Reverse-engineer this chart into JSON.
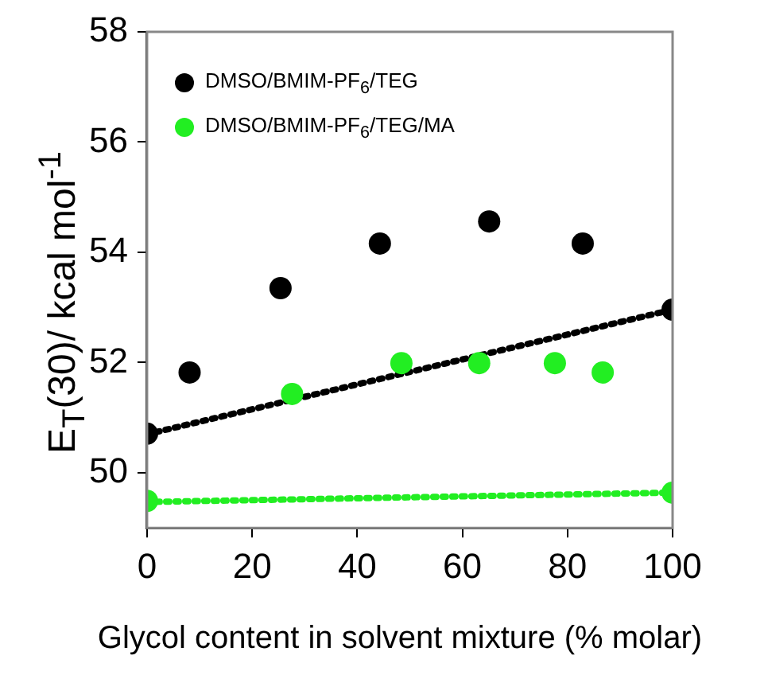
{
  "chart_data": {
    "type": "scatter",
    "xlabel": "Glycol content in solvent mixture (% molar)",
    "ylabel": "E$_{T}$(30)/ kcal mol$^{-1}$",
    "xlim": [
      0,
      100
    ],
    "xticks": [
      0,
      20,
      40,
      60,
      80,
      100
    ],
    "ylim": [
      49,
      58
    ],
    "yticks": [
      50,
      52,
      54,
      56,
      58
    ],
    "grid": false,
    "legend": "top left",
    "marker": "circle",
    "series": [
      {
        "name": "DMSO/BMIM-PF$_{6}$/TEG",
        "color": "#000000",
        "x": [
          0,
          8.1,
          25.4,
          44.3,
          65.1,
          82.9,
          100
        ],
        "values": [
          50.71,
          51.82,
          53.35,
          54.16,
          54.56,
          54.16,
          52.96
        ]
      },
      {
        "name": "DMSO/BMIM-PF$_{6}$/TEG/MA",
        "color": "#22ee22",
        "x": [
          0,
          27.6,
          48.4,
          63.2,
          77.6,
          86.7,
          100
        ],
        "values": [
          49.49,
          51.43,
          51.99,
          51.99,
          51.99,
          51.82,
          49.64
        ]
      },
      {
        "type": "line",
        "color": "#000000",
        "line_style": "dotted",
        "marker": "none",
        "x": [
          0,
          100
        ],
        "values": [
          50.7,
          52.96
        ]
      },
      {
        "type": "line",
        "color": "#22ee22",
        "line_style": "dotted",
        "marker": "none",
        "x": [
          0,
          100
        ],
        "values": [
          49.47,
          49.64
        ]
      }
    ]
  }
}
